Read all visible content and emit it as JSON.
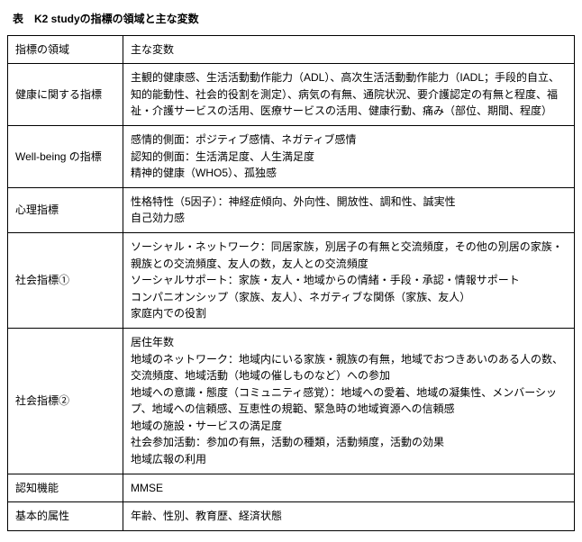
{
  "caption": "表　K2 studyの指標の領域と主な変数",
  "header": {
    "domain": "指標の領域",
    "vars": "主な変数"
  },
  "rows": [
    {
      "domain": "健康に関する指標",
      "lines": [
        "主観的健康感、生活活動動作能力（ADL）、高次生活活動動作能力（IADL；手段的自立、知的能動性、社会的役割を測定）、病気の有無、通院状況、要介護認定の有無と程度、福祉・介護サービスの活用、医療サービスの活用、健康行動、痛み（部位、期間、程度）"
      ]
    },
    {
      "domain": "Well-being の指標",
      "lines": [
        "感情的側面：ポジティブ感情、ネガティブ感情",
        "認知的側面：生活満足度、人生満足度",
        "精神的健康（WHO5）、孤独感"
      ]
    },
    {
      "domain": "心理指標",
      "lines": [
        "性格特性（5因子）：神経症傾向、外向性、開放性、調和性、誠実性",
        "自己効力感"
      ]
    },
    {
      "domain": "社会指標①",
      "lines": [
        "ソーシャル・ネットワーク：同居家族，別居子の有無と交流頻度，その他の別居の家族・親族との交流頻度、友人の数，友人との交流頻度",
        "ソーシャルサポート：家族・友人・地域からの情緒・手段・承認・情報サポート",
        "コンパニオンシップ（家族、友人）、ネガティブな関係（家族、友人）",
        "家庭内での役割"
      ]
    },
    {
      "domain": "社会指標②",
      "lines": [
        "居住年数",
        "地域のネットワーク：地域内にいる家族・親族の有無，地域でおつきあいのある人の数、交流頻度、地域活動（地域の催しものなど）への参加",
        "地域への意識・態度（コミュニティ感覚）：地域への愛着、地域の凝集性、メンバーシップ、地域への信頼感、互恵性の規範、緊急時の地域資源への信頼感",
        "地域の施設・サービスの満足度",
        "社会参加活動：参加の有無，活動の種類，活動頻度，活動の効果",
        "地域広報の利用"
      ]
    },
    {
      "domain": "認知機能",
      "lines": [
        "MMSE"
      ]
    },
    {
      "domain": "基本的属性",
      "lines": [
        "年齢、性別、教育歴、経済状態"
      ]
    }
  ]
}
